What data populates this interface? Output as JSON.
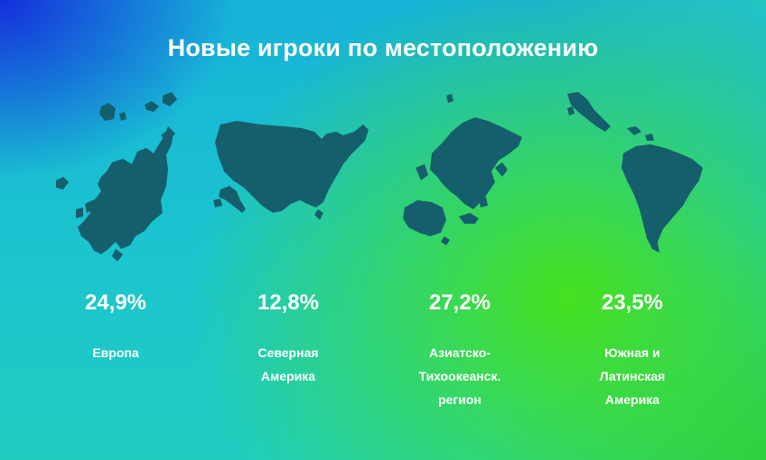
{
  "chart_data": {
    "type": "table",
    "title": "Новые игроки по местоположению",
    "categories": [
      "Европа",
      "Северная Америка",
      "Азиатско-Тихоокеанск. регион",
      "Южная и Латинская Америка"
    ],
    "values": [
      24.9,
      12.8,
      27.2,
      23.5
    ],
    "unit": "%",
    "items": [
      {
        "value": "24,9%",
        "label_lines": [
          "Европа"
        ],
        "icon": "europe-map-icon"
      },
      {
        "value": "12,8%",
        "label_lines": [
          "Северная",
          "Америка"
        ],
        "icon": "north-america-map-icon"
      },
      {
        "value": "27,2%",
        "label_lines": [
          "Азиатско-",
          "Тихоокеанск.",
          "регион"
        ],
        "icon": "asia-pacific-map-icon"
      },
      {
        "value": "23,5%",
        "label_lines": [
          "Южная и",
          "Латинская",
          "Америка"
        ],
        "icon": "south-latin-america-map-icon"
      }
    ]
  },
  "colors": {
    "map_fill": "#155f6c",
    "text": "#ffffff",
    "bg_blue": "#1428dc",
    "bg_cyan": "#1bc5cf",
    "bg_green": "#46e11e"
  }
}
